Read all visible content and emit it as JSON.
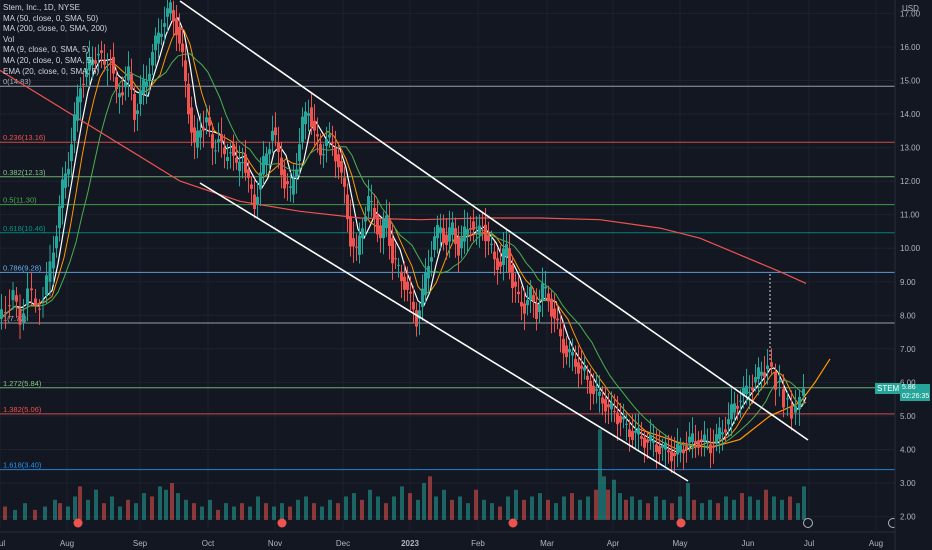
{
  "legend": {
    "symbol": "Stem, Inc., 1D, NYSE",
    "ma50": "MA (50, close, 0, SMA, 50)",
    "ma200": "MA (200, close, 0, SMA, 200)",
    "vol": "Vol",
    "ma9": "MA (9, close, 0, SMA, 5)",
    "ma20": "MA (20, close, 0, SMA, 5)",
    "ema20": "EMA (20, close, 0, SMA, 5)"
  },
  "currency": "USD",
  "ticker": {
    "name": "STEM",
    "price": "5.86",
    "countdown": "02:26:35"
  },
  "colors": {
    "up": "#26a69a",
    "down": "#ef5350",
    "bg": "#131722",
    "grid": "#1e222d",
    "text": "#b2b5be"
  },
  "chart_data": {
    "type": "candlestick",
    "x_labels": [
      "Jul",
      "Aug",
      "Sep",
      "Oct",
      "Nov",
      "Dec",
      "2023",
      "Feb",
      "Mar",
      "Apr",
      "May",
      "Jun",
      "Jul",
      "Aug"
    ],
    "y_ticks": [
      "17.00",
      "16.00",
      "15.00",
      "14.00",
      "13.00",
      "12.00",
      "11.00",
      "10.00",
      "9.00",
      "8.00",
      "7.00",
      "6.00",
      "5.00",
      "4.00",
      "3.00",
      "2.00"
    ],
    "ylim": [
      1.6,
      17.4
    ],
    "fib_levels": [
      {
        "label": "0(14.83)",
        "value": 14.83,
        "color": "#b2b5be"
      },
      {
        "label": "0.236(13.16)",
        "value": 13.16,
        "color": "#ef5350"
      },
      {
        "label": "0.382(12.13)",
        "value": 12.13,
        "color": "#81c784"
      },
      {
        "label": "0.5(11.30)",
        "value": 11.3,
        "color": "#4caf50"
      },
      {
        "label": "0.618(10.46)",
        "value": 10.46,
        "color": "#009688"
      },
      {
        "label": "0.786(9.28)",
        "value": 9.28,
        "color": "#64b5f6"
      },
      {
        "label": "1(7.77)",
        "value": 7.77,
        "color": "#b2b5be"
      },
      {
        "label": "1.272(5.84)",
        "value": 5.84,
        "color": "#81c784"
      },
      {
        "label": "1.382(5.06)",
        "value": 5.06,
        "color": "#ef5350"
      },
      {
        "label": "1.618(3.40)",
        "value": 3.4,
        "color": "#2196f3"
      }
    ],
    "close_path": [
      [
        0,
        7.9
      ],
      [
        8,
        8.3
      ],
      [
        15,
        8.6
      ],
      [
        22,
        7.8
      ],
      [
        30,
        8.8
      ],
      [
        38,
        8.2
      ],
      [
        45,
        8.6
      ],
      [
        52,
        9.4
      ],
      [
        58,
        10.6
      ],
      [
        64,
        11.8
      ],
      [
        70,
        12.6
      ],
      [
        76,
        13.8
      ],
      [
        82,
        14.9
      ],
      [
        88,
        15.3
      ],
      [
        94,
        15.6
      ],
      [
        100,
        15.9
      ],
      [
        106,
        15.3
      ],
      [
        112,
        15.7
      ],
      [
        118,
        14.5
      ],
      [
        124,
        14.8
      ],
      [
        130,
        15.2
      ],
      [
        136,
        14.0
      ],
      [
        142,
        14.6
      ],
      [
        148,
        15.0
      ],
      [
        154,
        15.9
      ],
      [
        160,
        16.3
      ],
      [
        166,
        16.9
      ],
      [
        172,
        17.1
      ],
      [
        178,
        16.6
      ],
      [
        184,
        15.6
      ],
      [
        190,
        14.2
      ],
      [
        196,
        13.0
      ],
      [
        202,
        13.6
      ],
      [
        208,
        13.9
      ],
      [
        214,
        12.9
      ],
      [
        220,
        13.4
      ],
      [
        226,
        12.6
      ],
      [
        232,
        13.1
      ],
      [
        238,
        12.3
      ],
      [
        244,
        12.8
      ],
      [
        250,
        11.9
      ],
      [
        256,
        11.3
      ],
      [
        262,
        12.2
      ],
      [
        268,
        12.8
      ],
      [
        274,
        13.6
      ],
      [
        280,
        12.7
      ],
      [
        286,
        12.0
      ],
      [
        292,
        11.6
      ],
      [
        298,
        12.6
      ],
      [
        304,
        13.7
      ],
      [
        310,
        14.2
      ],
      [
        316,
        13.4
      ],
      [
        322,
        12.8
      ],
      [
        328,
        13.3
      ],
      [
        334,
        13.0
      ],
      [
        340,
        12.6
      ],
      [
        346,
        11.6
      ],
      [
        352,
        10.3
      ],
      [
        358,
        9.8
      ],
      [
        364,
        10.8
      ],
      [
        370,
        11.4
      ],
      [
        376,
        11.0
      ],
      [
        382,
        10.3
      ],
      [
        388,
        10.9
      ],
      [
        394,
        9.7
      ],
      [
        400,
        9.3
      ],
      [
        406,
        9.0
      ],
      [
        412,
        8.4
      ],
      [
        418,
        7.9
      ],
      [
        424,
        8.6
      ],
      [
        430,
        9.6
      ],
      [
        436,
        10.3
      ],
      [
        442,
        10.6
      ],
      [
        448,
        10.2
      ],
      [
        454,
        10.6
      ],
      [
        460,
        10.0
      ],
      [
        466,
        10.4
      ],
      [
        472,
        10.8
      ],
      [
        478,
        10.4
      ],
      [
        484,
        10.7
      ],
      [
        490,
        10.1
      ],
      [
        496,
        9.7
      ],
      [
        502,
        9.5
      ],
      [
        508,
        10.0
      ],
      [
        514,
        9.0
      ],
      [
        520,
        8.4
      ],
      [
        526,
        8.3
      ],
      [
        532,
        8.6
      ],
      [
        538,
        8.1
      ],
      [
        544,
        8.8
      ],
      [
        550,
        8.5
      ],
      [
        556,
        7.9
      ],
      [
        562,
        7.3
      ],
      [
        568,
        6.9
      ],
      [
        574,
        6.7
      ],
      [
        580,
        6.5
      ],
      [
        586,
        6.2
      ],
      [
        592,
        5.9
      ],
      [
        598,
        5.6
      ],
      [
        604,
        5.5
      ],
      [
        610,
        5.2
      ],
      [
        616,
        5.1
      ],
      [
        622,
        4.9
      ],
      [
        628,
        4.6
      ],
      [
        634,
        4.5
      ],
      [
        640,
        4.4
      ],
      [
        646,
        4.3
      ],
      [
        652,
        4.2
      ],
      [
        658,
        4.1
      ],
      [
        664,
        4.0
      ],
      [
        670,
        3.95
      ],
      [
        676,
        3.85
      ],
      [
        682,
        4.0
      ],
      [
        688,
        4.2
      ],
      [
        694,
        4.25
      ],
      [
        700,
        4.3
      ],
      [
        706,
        4.2
      ],
      [
        712,
        4.1
      ],
      [
        718,
        4.3
      ],
      [
        724,
        4.6
      ],
      [
        730,
        4.9
      ],
      [
        736,
        5.3
      ],
      [
        742,
        5.6
      ],
      [
        748,
        5.7
      ],
      [
        754,
        6.0
      ],
      [
        760,
        6.2
      ],
      [
        766,
        6.4
      ],
      [
        770,
        6.6
      ],
      [
        774,
        6.3
      ],
      [
        778,
        6.0
      ],
      [
        782,
        5.8
      ],
      [
        786,
        5.5
      ],
      [
        790,
        5.3
      ],
      [
        794,
        5.1
      ],
      [
        798,
        5.2
      ],
      [
        802,
        5.6
      ],
      [
        806,
        5.86
      ]
    ],
    "volume": [
      [
        5,
        2.3
      ],
      [
        15,
        2.2
      ],
      [
        25,
        2.4
      ],
      [
        35,
        2.2
      ],
      [
        45,
        2.3
      ],
      [
        55,
        2.5
      ],
      [
        60,
        2.4
      ],
      [
        68,
        2.3
      ],
      [
        75,
        2.6
      ],
      [
        80,
        2.9
      ],
      [
        88,
        2.5
      ],
      [
        96,
        2.8
      ],
      [
        104,
        2.4
      ],
      [
        112,
        2.6
      ],
      [
        120,
        2.3
      ],
      [
        128,
        2.5
      ],
      [
        136,
        2.4
      ],
      [
        144,
        2.7
      ],
      [
        152,
        2.6
      ],
      [
        160,
        2.9
      ],
      [
        166,
        2.8
      ],
      [
        172,
        3.0
      ],
      [
        178,
        2.7
      ],
      [
        186,
        2.5
      ],
      [
        194,
        2.4
      ],
      [
        202,
        2.3
      ],
      [
        210,
        2.5
      ],
      [
        218,
        2.2
      ],
      [
        226,
        2.4
      ],
      [
        234,
        2.3
      ],
      [
        242,
        2.4
      ],
      [
        250,
        2.3
      ],
      [
        258,
        2.6
      ],
      [
        266,
        2.4
      ],
      [
        274,
        2.3
      ],
      [
        282,
        2.4
      ],
      [
        290,
        2.3
      ],
      [
        298,
        2.5
      ],
      [
        306,
        2.6
      ],
      [
        314,
        2.4
      ],
      [
        322,
        2.3
      ],
      [
        330,
        2.5
      ],
      [
        338,
        2.4
      ],
      [
        346,
        2.6
      ],
      [
        354,
        2.7
      ],
      [
        362,
        2.5
      ],
      [
        370,
        2.8
      ],
      [
        378,
        2.6
      ],
      [
        386,
        2.4
      ],
      [
        394,
        2.6
      ],
      [
        402,
        2.9
      ],
      [
        410,
        2.7
      ],
      [
        418,
        2.5
      ],
      [
        424,
        3.0
      ],
      [
        430,
        3.2
      ],
      [
        436,
        2.6
      ],
      [
        444,
        2.8
      ],
      [
        452,
        2.5
      ],
      [
        460,
        2.6
      ],
      [
        468,
        2.4
      ],
      [
        476,
        2.8
      ],
      [
        484,
        2.5
      ],
      [
        492,
        2.4
      ],
      [
        500,
        2.3
      ],
      [
        508,
        2.6
      ],
      [
        516,
        2.8
      ],
      [
        524,
        2.5
      ],
      [
        532,
        2.6
      ],
      [
        540,
        2.7
      ],
      [
        548,
        2.5
      ],
      [
        556,
        2.4
      ],
      [
        564,
        2.6
      ],
      [
        572,
        2.7
      ],
      [
        580,
        2.5
      ],
      [
        588,
        2.6
      ],
      [
        596,
        2.8
      ],
      [
        600,
        4.6
      ],
      [
        604,
        3.2
      ],
      [
        608,
        2.8
      ],
      [
        614,
        3.1
      ],
      [
        620,
        2.7
      ],
      [
        626,
        2.5
      ],
      [
        632,
        2.6
      ],
      [
        640,
        2.5
      ],
      [
        648,
        2.4
      ],
      [
        656,
        2.6
      ],
      [
        664,
        2.5
      ],
      [
        672,
        2.4
      ],
      [
        680,
        2.6
      ],
      [
        688,
        3.0
      ],
      [
        694,
        2.5
      ],
      [
        702,
        2.4
      ],
      [
        710,
        2.5
      ],
      [
        718,
        2.4
      ],
      [
        726,
        2.6
      ],
      [
        734,
        2.5
      ],
      [
        742,
        2.7
      ],
      [
        750,
        2.6
      ],
      [
        758,
        2.5
      ],
      [
        766,
        2.8
      ],
      [
        774,
        2.6
      ],
      [
        782,
        2.5
      ],
      [
        790,
        2.6
      ],
      [
        798,
        2.4
      ],
      [
        804,
        2.9
      ]
    ]
  }
}
